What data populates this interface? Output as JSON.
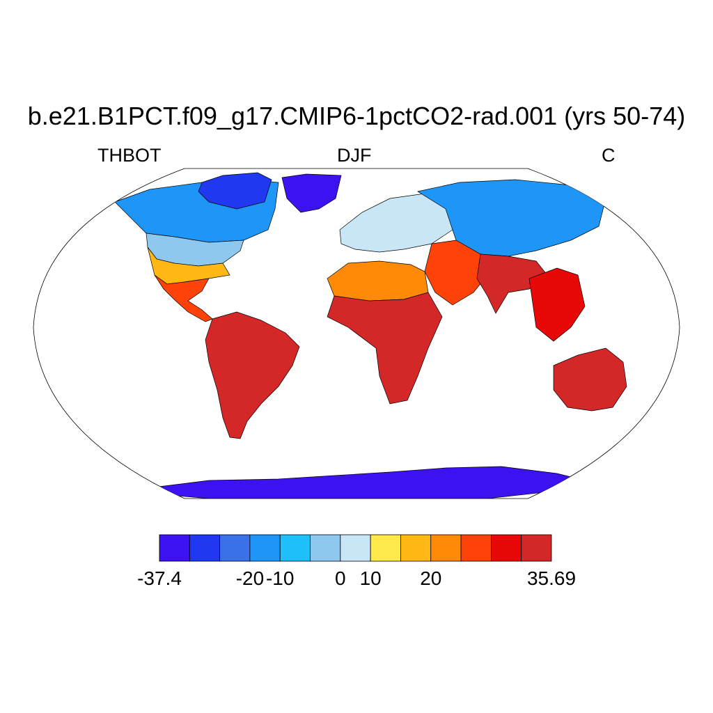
{
  "title": "b.e21.B1PCT.f09_g17.CMIP6-1pctCO2-rad.001 (yrs 50-74)",
  "subtitle": {
    "left": "THBOT",
    "center": "DJF",
    "right": "C"
  },
  "colorbar": {
    "colors": [
      "#3d12f0",
      "#1f38f0",
      "#3a70e8",
      "#1e96f8",
      "#1ec0fa",
      "#8ec8ee",
      "#c8e6f6",
      "#ffe84a",
      "#ffb814",
      "#ff8a08",
      "#ff4208",
      "#e80808",
      "#d42828"
    ],
    "labels": [
      "-37.4",
      "-20",
      "-10",
      "0",
      "10",
      "20",
      "35.69"
    ]
  },
  "map_regions": [
    {
      "name": "greenland",
      "color": "#3d12f0"
    },
    {
      "name": "arctic-canada",
      "color": "#1f38f0"
    },
    {
      "name": "canada",
      "color": "#1e96f8"
    },
    {
      "name": "usa-north",
      "color": "#8ec8ee"
    },
    {
      "name": "usa-south",
      "color": "#ffb814"
    },
    {
      "name": "mexico-central-america",
      "color": "#ff4208"
    },
    {
      "name": "south-america",
      "color": "#d42828"
    },
    {
      "name": "europe",
      "color": "#c8e6f6"
    },
    {
      "name": "siberia",
      "color": "#1e96f8"
    },
    {
      "name": "north-africa",
      "color": "#ff8a08"
    },
    {
      "name": "africa",
      "color": "#d42828"
    },
    {
      "name": "middle-east",
      "color": "#ff4208"
    },
    {
      "name": "india",
      "color": "#d42828"
    },
    {
      "name": "southeast-asia",
      "color": "#e80808"
    },
    {
      "name": "australia",
      "color": "#d42828"
    },
    {
      "name": "antarctica",
      "color": "#3d12f0"
    }
  ]
}
